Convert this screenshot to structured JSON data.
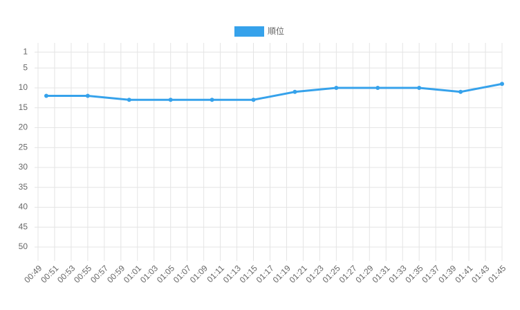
{
  "chart_data": {
    "type": "line",
    "x": [
      "00:50",
      "00:55",
      "01:00",
      "01:05",
      "01:10",
      "01:15",
      "01:20",
      "01:25",
      "01:30",
      "01:35",
      "01:40",
      "01:45"
    ],
    "series": [
      {
        "name": "順位",
        "color": "#36a2eb",
        "values": [
          12,
          12,
          13,
          13,
          13,
          13,
          11,
          10,
          10,
          10,
          11,
          9
        ]
      }
    ],
    "xlim": [
      "00:49",
      "01:45"
    ],
    "xticks": [
      "00:49",
      "00:51",
      "00:53",
      "00:55",
      "00:57",
      "00:59",
      "01:01",
      "01:03",
      "01:05",
      "01:07",
      "01:09",
      "01:11",
      "01:13",
      "01:15",
      "01:17",
      "01:19",
      "01:21",
      "01:23",
      "01:25",
      "01:27",
      "01:29",
      "01:31",
      "01:33",
      "01:35",
      "01:37",
      "01:39",
      "01:41",
      "01:43",
      "01:45"
    ],
    "ylim": [
      -1.3,
      52.6
    ],
    "y_reversed": true,
    "yticks": [
      1,
      5,
      10,
      15,
      20,
      25,
      30,
      35,
      40,
      45,
      50
    ],
    "grid": true,
    "legend": "top"
  }
}
